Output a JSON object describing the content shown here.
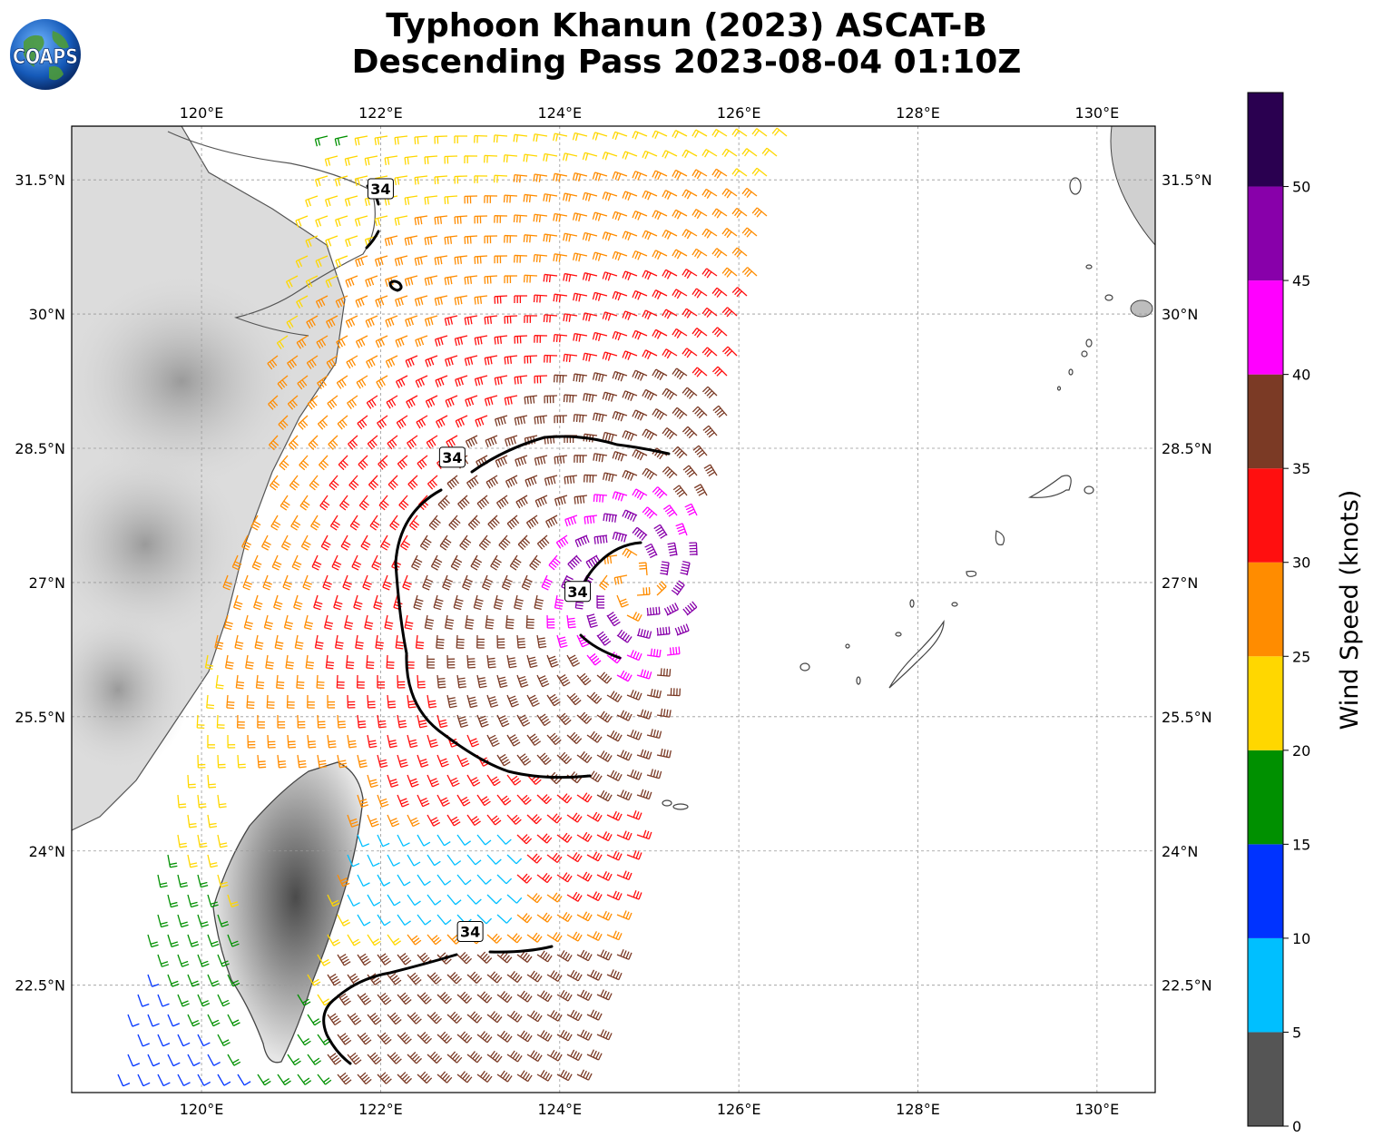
{
  "title": {
    "line1": "Typhoon Khanun (2023) ASCAT-B",
    "line2": "Descending Pass 2023-08-04 01:10Z"
  },
  "logo": {
    "text": "COAPS",
    "icon": "globe-logo-icon"
  },
  "map": {
    "lon_range": [
      118.55,
      130.65
    ],
    "lat_range": [
      21.3,
      32.1
    ],
    "lon_ticks": [
      {
        "value": 120,
        "label": "120°E"
      },
      {
        "value": 122,
        "label": "122°E"
      },
      {
        "value": 124,
        "label": "124°E"
      },
      {
        "value": 126,
        "label": "126°E"
      },
      {
        "value": 128,
        "label": "128°E"
      },
      {
        "value": 130,
        "label": "130°E"
      }
    ],
    "lat_ticks": [
      {
        "value": 22.5,
        "label": "22.5°N"
      },
      {
        "value": 24,
        "label": "24°N"
      },
      {
        "value": 25.5,
        "label": "25.5°N"
      },
      {
        "value": 27,
        "label": "27°N"
      },
      {
        "value": 28.5,
        "label": "28.5°N"
      },
      {
        "value": 30,
        "label": "30°N"
      },
      {
        "value": 31.5,
        "label": "31.5°N"
      }
    ],
    "grid": true,
    "storm_center": {
      "lon": 124.8,
      "lat": 27.0
    },
    "contour_label": "34",
    "contour_labels_at": [
      {
        "lon": 122.0,
        "lat": 31.4
      },
      {
        "lon": 122.8,
        "lat": 28.4
      },
      {
        "lon": 124.2,
        "lat": 26.9
      },
      {
        "lon": 123.0,
        "lat": 23.1
      }
    ]
  },
  "colorbar": {
    "label": "Wind Speed (knots)",
    "ticks": [
      "0",
      "5",
      "10",
      "15",
      "20",
      "25",
      "30",
      "35",
      "40",
      "45",
      "50"
    ],
    "bins": [
      {
        "from": 0,
        "to": 5,
        "color": "#555555"
      },
      {
        "from": 5,
        "to": 10,
        "color": "#00bfff"
      },
      {
        "from": 10,
        "to": 15,
        "color": "#0033ff"
      },
      {
        "from": 15,
        "to": 20,
        "color": "#009000"
      },
      {
        "from": 20,
        "to": 25,
        "color": "#ffd700"
      },
      {
        "from": 25,
        "to": 30,
        "color": "#ff8c00"
      },
      {
        "from": 30,
        "to": 35,
        "color": "#ff0f0f"
      },
      {
        "from": 35,
        "to": 40,
        "color": "#7b3a25"
      },
      {
        "from": 40,
        "to": 45,
        "color": "#ff00ff"
      },
      {
        "from": 45,
        "to": 50,
        "color": "#8800aa"
      },
      {
        "from": 50,
        "to": 55,
        "color": "#2a0050"
      }
    ]
  }
}
